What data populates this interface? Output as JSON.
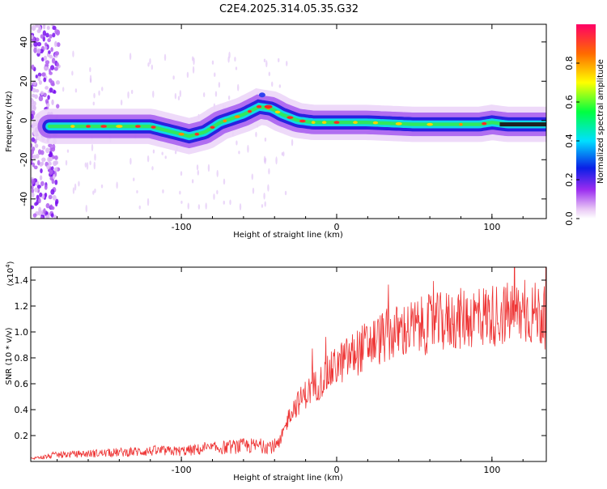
{
  "figure_title": "C2E4.2025.314.05.35.G32",
  "chart_data": [
    {
      "type": "heatmap",
      "title": "C2E4.2025.314.05.35.G32",
      "xlabel": "Height of straight line (km)",
      "ylabel": "Frequency (Hz)",
      "xlim": [
        -197,
        135
      ],
      "ylim": [
        -50,
        49
      ],
      "x_ticks": [
        -100,
        0,
        100
      ],
      "y_ticks": [
        -40,
        -20,
        0,
        20,
        40
      ],
      "colorbar": {
        "label": "Normalized spectral amplitude",
        "range": [
          0,
          1
        ],
        "ticks": [
          0.0,
          0.2,
          0.4,
          0.6,
          0.8
        ]
      },
      "ridge": {
        "x": [
          -180,
          -160,
          -140,
          -120,
          -105,
          -95,
          -85,
          -75,
          -60,
          -50,
          -42,
          -35,
          -25,
          -15,
          0,
          20,
          50,
          80,
          92,
          100,
          110,
          135
        ],
        "freq": [
          -3,
          -3,
          -3,
          -3,
          -6,
          -8,
          -6,
          -1,
          3,
          7,
          6,
          3,
          0,
          -1,
          -1,
          -1,
          -2,
          -2,
          -2,
          -1,
          -2,
          -2
        ]
      }
    },
    {
      "type": "line",
      "title": "",
      "xlabel": "Height of straight line (km)",
      "ylabel": "SNR (10 * v/v)",
      "y_multiplier_label": "(x10",
      "y_multiplier_exp": "4",
      "y_multiplier_close": ")",
      "xlim": [
        -197,
        135
      ],
      "ylim": [
        0,
        1.5
      ],
      "x_ticks": [
        -100,
        0,
        100
      ],
      "y_ticks": [
        0.2,
        0.4,
        0.6,
        0.8,
        1.0,
        1.2,
        1.4
      ],
      "series": [
        {
          "name": "SNR",
          "color": "#ee3333",
          "x": [
            -197,
            -180,
            -160,
            -140,
            -120,
            -100,
            -80,
            -60,
            -45,
            -37,
            -30,
            -25,
            -20,
            -10,
            0,
            10,
            20,
            30,
            40,
            50,
            60,
            70,
            80,
            90,
            100,
            110,
            120,
            130,
            135
          ],
          "y": [
            0.02,
            0.05,
            0.06,
            0.07,
            0.08,
            0.08,
            0.1,
            0.12,
            0.12,
            0.12,
            0.38,
            0.45,
            0.52,
            0.62,
            0.74,
            0.82,
            0.9,
            0.96,
            1.0,
            1.03,
            1.06,
            1.08,
            1.1,
            1.12,
            1.13,
            1.14,
            1.15,
            1.14,
            1.1
          ]
        }
      ]
    }
  ]
}
